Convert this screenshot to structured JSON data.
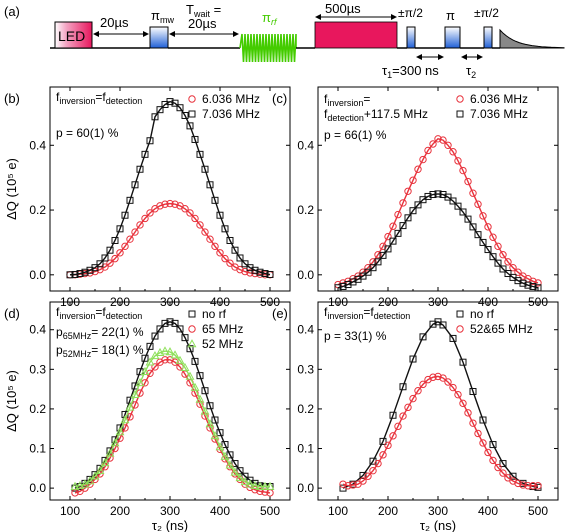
{
  "figure": {
    "panel_a": {
      "label": "(a)",
      "led_label": "LED",
      "t1_label": "20µs",
      "pi_mw_label": "π",
      "pi_mw_sub": "mw",
      "twait_label": "T",
      "twait_sub": "wait",
      "twait_eq": " =",
      "twait_value": "20µs",
      "pi_rf_label": "π",
      "pi_rf_sub": "rf",
      "t500_label": "500µs",
      "pm_pi2_label_1": "±π/2",
      "pi_label": "π",
      "pm_pi2_label_2": "±π/2",
      "tau1_label": "τ",
      "tau1_sub": "1",
      "tau1_value": "=300 ns",
      "tau2_label": "τ",
      "tau2_sub": "2",
      "colors": {
        "led": "#e8175d",
        "mw": "#1f5fd6",
        "rf": "#44cc00",
        "readout": "#e8175d",
        "decay": "#888888"
      }
    }
  },
  "chart_data": [
    {
      "type": "line",
      "panel": "(b)",
      "annotation": {
        "f1": "f",
        "f1_sub": "inversion",
        "eq": "=f",
        "f2_sub": "detection",
        "line2": "",
        "p_text": "p = 60(1) %"
      },
      "xlabel": "",
      "ylabel": "ΔQ (10⁵ e)",
      "xlim": [
        60,
        540
      ],
      "ylim": [
        -0.05,
        0.58
      ],
      "xticks": [
        100,
        200,
        300,
        400,
        500
      ],
      "yticks": [
        0.0,
        0.2,
        0.4
      ],
      "ytick_labels": [
        "0.0",
        "0.2",
        "0.4"
      ],
      "legend_position": "top-right",
      "series": [
        {
          "name": "6.036 MHz",
          "marker": "circle",
          "color": "#e8323c",
          "x": [
            100,
            110,
            120,
            130,
            140,
            150,
            160,
            170,
            180,
            190,
            200,
            210,
            220,
            230,
            240,
            250,
            260,
            270,
            280,
            290,
            300,
            310,
            320,
            330,
            340,
            350,
            360,
            370,
            380,
            390,
            400,
            410,
            420,
            430,
            440,
            450,
            460,
            470,
            480,
            490,
            500
          ],
          "y": [
            0.0,
            0.0,
            0.002,
            0.004,
            0.006,
            0.01,
            0.016,
            0.024,
            0.036,
            0.05,
            0.068,
            0.088,
            0.11,
            0.132,
            0.154,
            0.174,
            0.191,
            0.204,
            0.213,
            0.218,
            0.22,
            0.218,
            0.213,
            0.204,
            0.191,
            0.174,
            0.154,
            0.132,
            0.11,
            0.088,
            0.068,
            0.05,
            0.036,
            0.024,
            0.016,
            0.01,
            0.006,
            0.004,
            0.002,
            0.0,
            0.0
          ]
        },
        {
          "name": "7.036 MHz",
          "marker": "square",
          "color": "#111111",
          "x": [
            100,
            110,
            120,
            130,
            140,
            150,
            160,
            170,
            180,
            190,
            200,
            210,
            220,
            230,
            240,
            250,
            260,
            270,
            280,
            290,
            300,
            310,
            320,
            330,
            340,
            350,
            360,
            370,
            380,
            390,
            400,
            410,
            420,
            430,
            440,
            450,
            460,
            470,
            480,
            490,
            500
          ],
          "y": [
            0.0,
            0.001,
            0.004,
            0.008,
            0.014,
            0.022,
            0.034,
            0.052,
            0.076,
            0.106,
            0.142,
            0.184,
            0.23,
            0.278,
            0.326,
            0.372,
            0.414,
            0.488,
            0.51,
            0.526,
            0.535,
            0.53,
            0.516,
            0.492,
            0.46,
            0.418,
            0.372,
            0.326,
            0.278,
            0.23,
            0.184,
            0.142,
            0.106,
            0.076,
            0.052,
            0.034,
            0.022,
            0.014,
            0.008,
            0.004,
            0.001
          ]
        }
      ]
    },
    {
      "type": "line",
      "panel": "(c)",
      "annotation": {
        "f1": "f",
        "f1_sub": "inversion",
        "eq": "=",
        "f2": "f",
        "f2_sub": "detection",
        "line2": "+117.5 MHz",
        "p_text": "p = 66(1) %"
      },
      "xlabel": "",
      "ylabel": "",
      "xlim": [
        60,
        540
      ],
      "ylim": [
        -0.05,
        0.58
      ],
      "xticks": [
        100,
        200,
        300,
        400,
        500
      ],
      "yticks": [
        0.0,
        0.2,
        0.4
      ],
      "ytick_labels": [
        "0.0",
        "0.2",
        "0.4"
      ],
      "legend_position": "top-right",
      "series": [
        {
          "name": "6.036 MHz",
          "marker": "circle",
          "color": "#e8323c",
          "x": [
            100,
            110,
            120,
            130,
            140,
            150,
            160,
            170,
            180,
            190,
            200,
            210,
            220,
            230,
            240,
            250,
            260,
            270,
            280,
            290,
            300,
            310,
            320,
            330,
            340,
            350,
            360,
            370,
            380,
            390,
            400,
            410,
            420,
            430,
            440,
            450,
            460,
            470,
            480,
            490,
            500
          ],
          "y": [
            -0.03,
            -0.025,
            -0.02,
            -0.012,
            -0.004,
            0.008,
            0.022,
            0.04,
            0.062,
            0.088,
            0.118,
            0.15,
            0.186,
            0.222,
            0.258,
            0.292,
            0.326,
            0.356,
            0.384,
            0.404,
            0.42,
            0.416,
            0.4,
            0.38,
            0.352,
            0.322,
            0.288,
            0.252,
            0.218,
            0.182,
            0.148,
            0.116,
            0.088,
            0.062,
            0.04,
            0.022,
            0.008,
            -0.004,
            -0.012,
            -0.02,
            -0.025
          ]
        },
        {
          "name": "7.036 MHz",
          "marker": "square",
          "color": "#111111",
          "x": [
            100,
            110,
            120,
            130,
            140,
            150,
            160,
            170,
            180,
            190,
            200,
            210,
            220,
            230,
            240,
            250,
            260,
            270,
            280,
            290,
            300,
            310,
            320,
            330,
            340,
            350,
            360,
            370,
            380,
            390,
            400,
            410,
            420,
            430,
            440,
            450,
            460,
            470,
            480,
            490,
            500
          ],
          "y": [
            -0.04,
            -0.036,
            -0.03,
            -0.022,
            -0.014,
            -0.004,
            0.008,
            0.022,
            0.04,
            0.06,
            0.08,
            0.104,
            0.128,
            0.152,
            0.176,
            0.198,
            0.216,
            0.232,
            0.242,
            0.248,
            0.25,
            0.248,
            0.24,
            0.228,
            0.212,
            0.194,
            0.172,
            0.148,
            0.124,
            0.1,
            0.078,
            0.056,
            0.036,
            0.018,
            0.004,
            -0.008,
            -0.018,
            -0.026,
            -0.032,
            -0.036,
            -0.04
          ]
        }
      ]
    },
    {
      "type": "line",
      "panel": "(d)",
      "annotation": {
        "f1": "f",
        "f1_sub": "inversion",
        "eq": "=f",
        "f2_sub": "detection",
        "p1": "p",
        "p1_sub": "65MHz",
        "p1_val": "= 22(1) %",
        "p2": "p",
        "p2_sub": "52MHz",
        "p2_val": "= 18(1) %"
      },
      "xlabel": "τ₂ (ns)",
      "ylabel": "ΔQ (10⁵ e)",
      "xlim": [
        60,
        540
      ],
      "ylim": [
        -0.03,
        0.47
      ],
      "xticks": [
        100,
        200,
        300,
        400,
        500
      ],
      "yticks": [
        0.0,
        0.1,
        0.2,
        0.3,
        0.4
      ],
      "ytick_labels": [
        "0.0",
        "0.1",
        "0.2",
        "0.3",
        "0.4"
      ],
      "legend_position": "top-right",
      "series": [
        {
          "name": "no rf",
          "marker": "square",
          "color": "#111111",
          "x": [
            110,
            120,
            130,
            140,
            150,
            160,
            170,
            180,
            190,
            200,
            210,
            220,
            230,
            240,
            250,
            260,
            270,
            280,
            290,
            300,
            310,
            320,
            330,
            340,
            350,
            360,
            370,
            380,
            390,
            400,
            410,
            420,
            430,
            440,
            450,
            460,
            470,
            480,
            490,
            500
          ],
          "y": [
            0.0,
            0.004,
            0.012,
            0.022,
            0.034,
            0.05,
            0.07,
            0.094,
            0.122,
            0.152,
            0.186,
            0.222,
            0.258,
            0.294,
            0.328,
            0.358,
            0.384,
            0.402,
            0.416,
            0.42,
            0.416,
            0.402,
            0.38,
            0.352,
            0.32,
            0.284,
            0.246,
            0.208,
            0.172,
            0.14,
            0.11,
            0.084,
            0.062,
            0.044,
            0.03,
            0.02,
            0.012,
            0.006,
            0.004,
            0.004
          ]
        },
        {
          "name": "65 MHz",
          "marker": "circle",
          "color": "#e8323c",
          "x": [
            110,
            120,
            130,
            140,
            150,
            160,
            170,
            180,
            190,
            200,
            210,
            220,
            230,
            240,
            250,
            260,
            270,
            280,
            290,
            300,
            310,
            320,
            330,
            340,
            350,
            360,
            370,
            380,
            390,
            400,
            410,
            420,
            430,
            440,
            450,
            460,
            470,
            480,
            490,
            500
          ],
          "y": [
            -0.012,
            -0.008,
            0.0,
            0.01,
            0.022,
            0.036,
            0.054,
            0.076,
            0.1,
            0.126,
            0.152,
            0.18,
            0.21,
            0.24,
            0.266,
            0.29,
            0.306,
            0.318,
            0.324,
            0.324,
            0.318,
            0.306,
            0.288,
            0.266,
            0.24,
            0.212,
            0.182,
            0.152,
            0.124,
            0.098,
            0.074,
            0.054,
            0.036,
            0.022,
            0.01,
            0.002,
            -0.004,
            -0.008,
            -0.01,
            -0.012
          ]
        },
        {
          "name": "52 MHz",
          "marker": "triangle",
          "color": "#8ee05a",
          "x": [
            110,
            120,
            130,
            140,
            150,
            160,
            170,
            180,
            190,
            200,
            210,
            220,
            230,
            240,
            250,
            260,
            270,
            280,
            290,
            300,
            310,
            320,
            330,
            340,
            350,
            360,
            370,
            380,
            390,
            400,
            410,
            420,
            430,
            440,
            450,
            460,
            470,
            480,
            490,
            500
          ],
          "y": [
            0.004,
            0.006,
            0.01,
            0.018,
            0.03,
            0.044,
            0.064,
            0.088,
            0.114,
            0.142,
            0.172,
            0.204,
            0.236,
            0.266,
            0.294,
            0.318,
            0.334,
            0.342,
            0.346,
            0.344,
            0.336,
            0.322,
            0.304,
            0.282,
            0.254,
            0.224,
            0.194,
            0.162,
            0.132,
            0.104,
            0.08,
            0.058,
            0.04,
            0.026,
            0.016,
            0.01,
            0.006,
            0.004,
            0.004,
            0.004
          ]
        }
      ]
    },
    {
      "type": "line",
      "panel": "(e)",
      "annotation": {
        "f1": "f",
        "f1_sub": "inversion",
        "eq": "=f",
        "f2_sub": "detection",
        "p_text": "p = 33(1) %"
      },
      "xlabel": "τ₂ (ns)",
      "ylabel": "",
      "xlim": [
        60,
        540
      ],
      "ylim": [
        -0.03,
        0.47
      ],
      "xticks": [
        100,
        200,
        300,
        400,
        500
      ],
      "yticks": [
        0.0,
        0.1,
        0.2,
        0.3,
        0.4
      ],
      "ytick_labels": [
        "0.0",
        "0.1",
        "0.2",
        "0.3",
        "0.4"
      ],
      "legend_position": "top-right",
      "series": [
        {
          "name": "no rf",
          "marker": "square",
          "color": "#111111",
          "x": [
            110,
            130,
            150,
            170,
            190,
            210,
            230,
            250,
            270,
            290,
            300,
            310,
            330,
            350,
            370,
            390,
            410,
            430,
            450,
            470,
            490,
            500
          ],
          "y": [
            0.0,
            0.01,
            0.032,
            0.068,
            0.118,
            0.184,
            0.256,
            0.326,
            0.382,
            0.414,
            0.42,
            0.412,
            0.378,
            0.318,
            0.244,
            0.172,
            0.11,
            0.062,
            0.03,
            0.012,
            0.004,
            0.002
          ]
        },
        {
          "name": "52&65 MHz",
          "marker": "circle",
          "color": "#e8323c",
          "x": [
            110,
            120,
            130,
            140,
            150,
            160,
            170,
            180,
            190,
            200,
            210,
            220,
            230,
            240,
            250,
            260,
            270,
            280,
            290,
            300,
            310,
            320,
            330,
            340,
            350,
            360,
            370,
            380,
            390,
            400,
            410,
            420,
            430,
            440,
            450,
            460,
            470,
            480,
            490,
            500
          ],
          "y": [
            0.01,
            0.006,
            0.008,
            0.01,
            0.018,
            0.03,
            0.044,
            0.062,
            0.084,
            0.108,
            0.132,
            0.156,
            0.182,
            0.204,
            0.226,
            0.246,
            0.262,
            0.274,
            0.28,
            0.282,
            0.278,
            0.268,
            0.254,
            0.236,
            0.214,
            0.19,
            0.164,
            0.138,
            0.114,
            0.09,
            0.07,
            0.052,
            0.038,
            0.026,
            0.018,
            0.012,
            0.008,
            0.006,
            0.006,
            0.006
          ]
        }
      ]
    }
  ]
}
